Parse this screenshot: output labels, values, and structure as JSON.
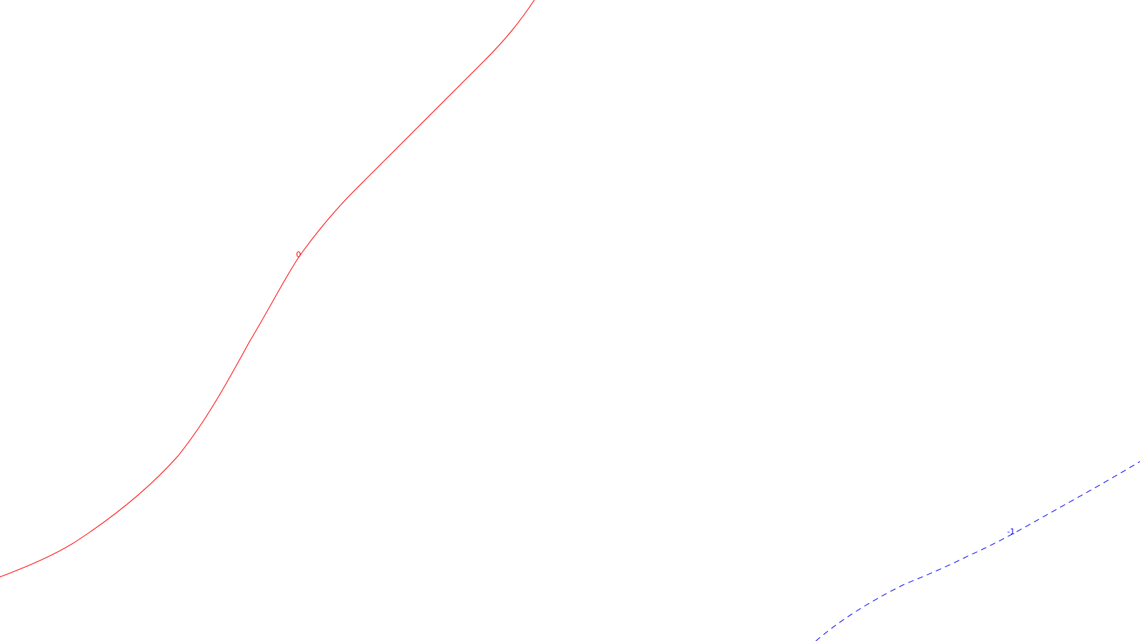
{
  "chart_data": {
    "type": "contour",
    "colors": {
      "background": "#ffffff",
      "level_0": "#ff0000",
      "level_neg1": "#0000ff"
    },
    "contours": [
      {
        "level": 0,
        "label": "0",
        "color": "#ff0000",
        "style": "solid"
      },
      {
        "level": -1,
        "label": "-1",
        "color": "#0000ff",
        "style": "dashed"
      }
    ]
  }
}
